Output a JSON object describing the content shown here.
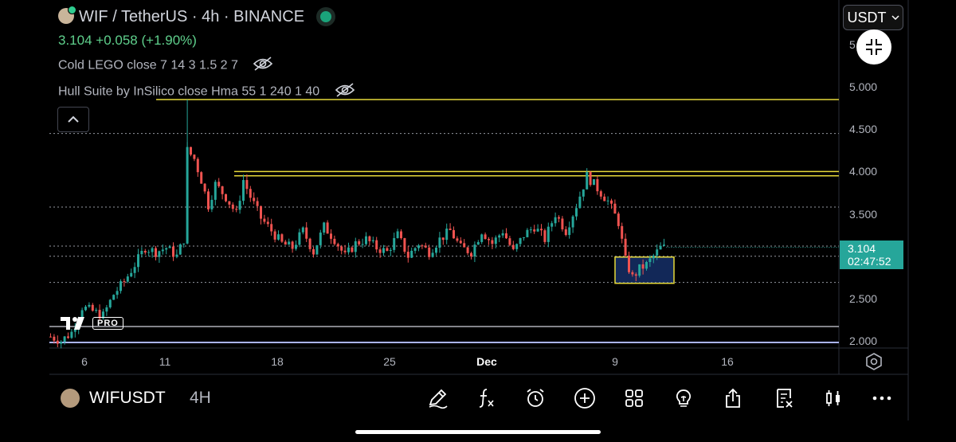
{
  "header": {
    "title": "WIF / TetherUS · 4h · BINANCE",
    "last_price": "3.104",
    "change": "+0.058 (+1.90%)",
    "indicators": [
      {
        "label": "Cold LEGO close 7 14 3 1.5 2 7",
        "icon": "eye-off-icon"
      },
      {
        "label": "Hull Suite by InSilico close Hma 55 1 240 1 40",
        "icon": "eye-off-icon"
      }
    ]
  },
  "currency": {
    "label": "USDT"
  },
  "price_axis": {
    "ticks": [
      "5.000",
      "4.500",
      "4.000",
      "3.500",
      "3.000",
      "2.500",
      "2.000"
    ],
    "top_partial": "5",
    "current_price": "3.104",
    "countdown": "02:47:52"
  },
  "time_axis": {
    "ticks": [
      {
        "label": "6",
        "bold": false
      },
      {
        "label": "11",
        "bold": false
      },
      {
        "label": "18",
        "bold": false
      },
      {
        "label": "25",
        "bold": false
      },
      {
        "label": "Dec",
        "bold": true
      },
      {
        "label": "9",
        "bold": false
      },
      {
        "label": "16",
        "bold": false
      }
    ]
  },
  "branding": {
    "pro_badge": "PRO"
  },
  "bottom_bar": {
    "symbol": "WIFUSDT",
    "interval": "4H",
    "tools": [
      "pencil-icon",
      "function-icon",
      "alarm-icon",
      "add-circle-icon",
      "grid-icon",
      "idea-bulb-icon",
      "share-icon",
      "watchlist-icon",
      "candles-icon",
      "more-icon"
    ]
  },
  "colors": {
    "up": "#26a69a",
    "down": "#ef5350",
    "level_line": "#e6d93a",
    "price_tag": "#26a69a"
  },
  "chart_data": {
    "type": "candlestick",
    "y_range": [
      1.96,
      5.8
    ],
    "horizontal_levels": [
      4.85,
      4.0,
      3.95
    ],
    "dotted_levels": [
      4.45,
      3.58,
      3.0,
      2.69,
      3.12
    ],
    "support_box": {
      "low": 2.68,
      "high": 2.99
    },
    "price_path": [
      [
        0,
        2.05
      ],
      [
        3,
        2.0
      ],
      [
        6,
        2.1
      ],
      [
        9,
        2.4
      ],
      [
        12,
        2.35
      ],
      [
        15,
        2.3
      ],
      [
        18,
        2.55
      ],
      [
        21,
        2.7
      ],
      [
        24,
        2.9
      ],
      [
        27,
        3.1
      ],
      [
        30,
        3.05
      ],
      [
        33,
        3.1
      ],
      [
        36,
        3.0
      ],
      [
        38,
        3.2
      ],
      [
        39,
        4.25
      ],
      [
        41,
        4.15
      ],
      [
        43,
        3.9
      ],
      [
        45,
        3.6
      ],
      [
        47,
        3.85
      ],
      [
        50,
        3.7
      ],
      [
        53,
        3.5
      ],
      [
        55,
        3.9
      ],
      [
        57,
        3.7
      ],
      [
        60,
        3.45
      ],
      [
        63,
        3.3
      ],
      [
        66,
        3.15
      ],
      [
        69,
        3.1
      ],
      [
        72,
        3.3
      ],
      [
        75,
        3.05
      ],
      [
        78,
        3.35
      ],
      [
        81,
        3.2
      ],
      [
        84,
        3.0
      ],
      [
        87,
        3.15
      ],
      [
        90,
        3.2
      ],
      [
        93,
        3.1
      ],
      [
        96,
        3.05
      ],
      [
        99,
        3.25
      ],
      [
        102,
        3.0
      ],
      [
        105,
        3.15
      ],
      [
        108,
        3.05
      ],
      [
        111,
        3.2
      ],
      [
        114,
        3.3
      ],
      [
        117,
        3.1
      ],
      [
        120,
        3.05
      ],
      [
        123,
        3.3
      ],
      [
        126,
        3.15
      ],
      [
        129,
        3.3
      ],
      [
        132,
        3.05
      ],
      [
        135,
        3.25
      ],
      [
        138,
        3.35
      ],
      [
        141,
        3.2
      ],
      [
        144,
        3.5
      ],
      [
        147,
        3.3
      ],
      [
        150,
        3.6
      ],
      [
        153,
        3.95
      ],
      [
        156,
        3.8
      ],
      [
        159,
        3.65
      ],
      [
        162,
        3.4
      ],
      [
        164,
        2.95
      ],
      [
        166,
        2.75
      ],
      [
        168,
        2.85
      ],
      [
        170,
        2.9
      ],
      [
        172,
        3.0
      ],
      [
        174,
        3.1
      ],
      [
        176,
        3.104
      ]
    ]
  }
}
